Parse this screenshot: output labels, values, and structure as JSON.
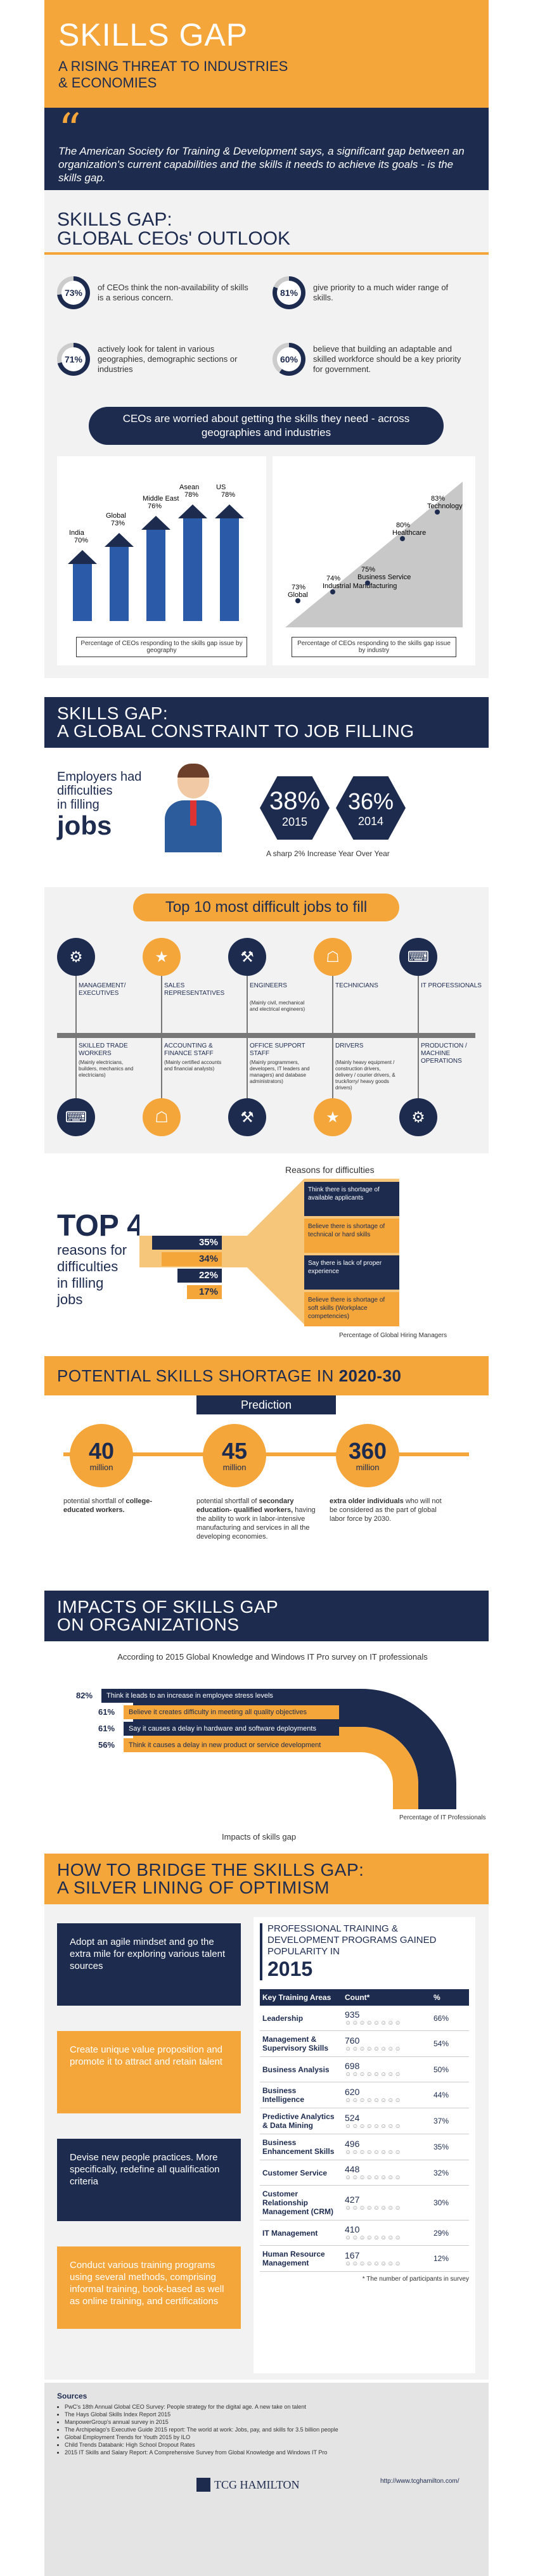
{
  "header": {
    "title": "SKILLS GAP",
    "subtitle_line1": "A RISING THREAT TO INDUSTRIES",
    "subtitle_line2": "& ECONOMIES",
    "quote": "The American Society for Training & Development says, a significant gap between an organization's current capabilities and the skills it needs to achieve its goals - is the skills gap."
  },
  "s1": {
    "title_line1": "SKILLS GAP:",
    "title_line2": "GLOBAL CEOs' OUTLOOK",
    "stats": [
      {
        "pct": "73%",
        "text": "of CEOs think the non-availability of skills is a serious concern."
      },
      {
        "pct": "81%",
        "text": "give priority to a much wider range of skills."
      },
      {
        "pct": "71%",
        "text": "actively look for talent in various geographies, demographic sections or industries"
      },
      {
        "pct": "60%",
        "text": "believe that building an adaptable and skilled workforce should be a key priority for government."
      }
    ],
    "banner": "CEOs are worried about getting the skills they need - across geographies and industries",
    "geo_bars": [
      {
        "label": "India",
        "value": "70%"
      },
      {
        "label": "Global",
        "value": "73%"
      },
      {
        "label": "Middle East",
        "value": "76%"
      },
      {
        "label": "Asean",
        "value": "78%"
      },
      {
        "label": "US",
        "value": "78%"
      }
    ],
    "geo_caption": "Percentage of CEOs responding to the skills gap issue by geography",
    "ind_points": [
      {
        "label": "Global",
        "value": "73%"
      },
      {
        "label": "Industrial Manufacturing",
        "value": "74%"
      },
      {
        "label": "Business Service",
        "value": "75%"
      },
      {
        "label": "Healthcare",
        "value": "80%"
      },
      {
        "label": "Technology",
        "value": "83%"
      }
    ],
    "ind_caption": "Percentage of CEOs responding to the skills gap issue by industry"
  },
  "s2": {
    "title_line1": "SKILLS GAP:",
    "title_line2": "A GLOBAL CONSTRAINT TO JOB FILLING",
    "employers_l1": "Employers had",
    "employers_l2": "difficulties",
    "employers_l3": "in filling",
    "employers_l4": "jobs",
    "y2015_pct": "38%",
    "y2015": "2015",
    "y2014_pct": "36%",
    "y2014": "2014",
    "increase": "A sharp 2% Increase Year Over Year",
    "top10_title": "Top 10 most difficult jobs to fill",
    "top_jobs": [
      {
        "label": "MANAGEMENT/ EXECUTIVES"
      },
      {
        "label": "SALES REPRESENTATIVES"
      },
      {
        "label": "ENGINEERS",
        "note": "(Mainly civil, mechanical and electrical engineers)"
      },
      {
        "label": "TECHNICIANS"
      },
      {
        "label": "IT PROFESSIONALS"
      }
    ],
    "bottom_jobs": [
      {
        "label": "SKILLED TRADE WORKERS",
        "note": "(Mainly electricians, builders, mechanics and electricians)"
      },
      {
        "label": "ACCOUNTING & FINANCE STAFF",
        "note": "(Mainly certified accounts and financial analysts)"
      },
      {
        "label": "OFFICE SUPPORT STAFF",
        "note": "(Mainly programmers, developers, IT leaders and managers) and database administrators)"
      },
      {
        "label": "DRIVERS",
        "note": "(Mainly heavy equipment / construction drivers, delivery / courier drivers, & truck/lorry/ heavy goods drivers)"
      },
      {
        "label": "PRODUCTION / MACHINE OPERATIONS"
      }
    ]
  },
  "s3": {
    "top4": "TOP 4",
    "reasons_l1": "reasons for",
    "reasons_l2": "difficulties",
    "reasons_l3": "in filling",
    "reasons_l4": "jobs",
    "chart_title": "Reasons for difficulties",
    "reasons": [
      {
        "pct": "35%",
        "text": "Think there is shortage of available applicants"
      },
      {
        "pct": "34%",
        "text": "Believe there is shortage of technical or hard skills"
      },
      {
        "pct": "22%",
        "text": "Say there is lack of proper experience"
      },
      {
        "pct": "17%",
        "text": "Believe there is shortage of soft skills (Workplace competencies)"
      }
    ],
    "caption": "Percentage of Global Hiring Managers"
  },
  "s4": {
    "title": "POTENTIAL SKILLS SHORTAGE IN ",
    "title_bold": "2020-30",
    "prediction": "Prediction",
    "items": [
      {
        "num": "40",
        "unit": "million",
        "text_a": "potential shortfall of ",
        "text_b": "college- educated workers."
      },
      {
        "num": "45",
        "unit": "million",
        "text_a": "potential shortfall of ",
        "text_b": "secondary education- qualified workers,",
        "text_c": " having the ability to work in labor-intensive manufacturing and services in all the developing economies."
      },
      {
        "num": "360",
        "unit": "million",
        "text_a": "",
        "text_b": "extra older individuals",
        "text_c": " who will not be considered as the part of global labor force by 2030."
      }
    ]
  },
  "s5": {
    "title_line1": "IMPACTS OF SKILLS GAP",
    "title_line2": "ON ORGANIZATIONS",
    "survey": "According to 2015 Global Knowledge and Windows IT Pro survey on IT professionals",
    "impacts": [
      {
        "pct": "82%",
        "text": "Think it leads to an increase in employee stress levels"
      },
      {
        "pct": "61%",
        "text": "Believe it creates difficulty in meeting all quality objectives"
      },
      {
        "pct": "61%",
        "text": "Say it causes a delay in hardware and software deployments"
      },
      {
        "pct": "56%",
        "text": "Think it causes a delay in new product or service development"
      }
    ],
    "caption": "Percentage of IT Professionals",
    "footer": "Impacts of skills gap"
  },
  "s6": {
    "title_line1": "HOW TO BRIDGE THE SKILLS GAP:",
    "title_line2": "A SILVER LINING OF OPTIMISM",
    "tips": [
      "Adopt an agile mindset and go the extra mile for exploring various talent sources",
      "Create unique value proposition and promote it to attract and retain talent",
      "Devise new people practices. More specifically, redefine all qualification criteria",
      "Conduct various training programs using several methods, comprising informal training, book-based as well as online training, and certifications"
    ],
    "table_title": "PROFESSIONAL TRAINING & DEVELOPMENT PROGRAMS GAINED POPULARITY IN",
    "table_year": "2015",
    "cols": [
      "Key Training Areas",
      "Count*",
      "%"
    ],
    "rows": [
      [
        "Leadership",
        "935",
        "66%"
      ],
      [
        "Management & Supervisory Skills",
        "760",
        "54%"
      ],
      [
        "Business Analysis",
        "698",
        "50%"
      ],
      [
        "Business Intelligence",
        "620",
        "44%"
      ],
      [
        "Predictive Analytics & Data Mining",
        "524",
        "37%"
      ],
      [
        "Business Enhancement Skills",
        "496",
        "35%"
      ],
      [
        "Customer Service",
        "448",
        "32%"
      ],
      [
        "Customer Relationship Management (CRM)",
        "427",
        "30%"
      ],
      [
        "IT Management",
        "410",
        "29%"
      ],
      [
        "Human Resource Management",
        "167",
        "12%"
      ]
    ],
    "note": "* The number of participants in survey"
  },
  "sources": {
    "title": "Sources",
    "items": [
      "PwC's 18th Annual Global CEO Survey: People strategy for the digital age. A new take on talent",
      "The Hays Global Skills Index Report 2015",
      "ManpowerGroup's annual survey in 2015",
      "The Archipelago's Executive Guide 2015 report: The world at work: Jobs, pay, and skills for 3.5 billion people",
      "Global Employment Trends for Youth 2015 by ILO",
      "Child Trends Databank: High School Dropout Rates",
      "2015 IT Skills and Salary Report: A Comprehensive Survey from Global Knowledge and Windows IT Pro"
    ],
    "logo": "TCG HAMILTON",
    "url": "http://www.tcghamilton.com/"
  }
}
